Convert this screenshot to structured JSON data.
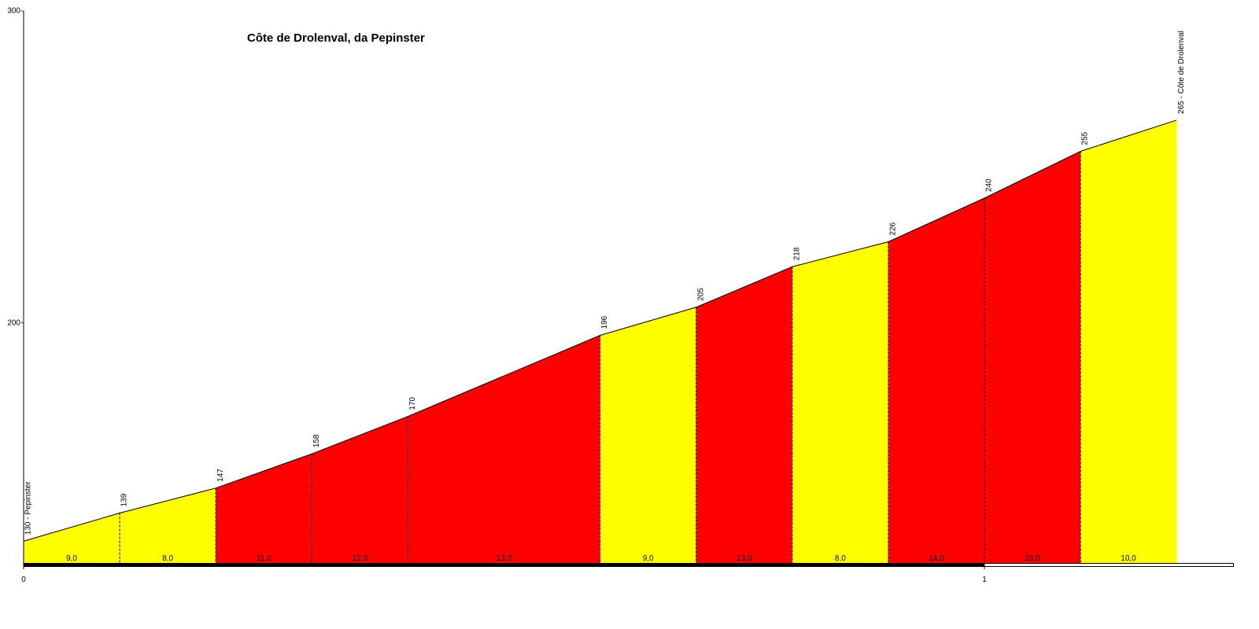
{
  "chart_data": {
    "type": "area",
    "title": "Côte de Drolenval, da Pepinster",
    "x": [
      0,
      0.1,
      0.2,
      0.3,
      0.4,
      0.6,
      0.7,
      0.8,
      0.9,
      1.0,
      1.1,
      1.2
    ],
    "y": [
      130,
      139,
      147,
      158,
      170,
      196,
      205,
      218,
      226,
      240,
      255,
      265
    ],
    "value_labels": [
      "130 - Pepinster",
      "139",
      "147",
      "158",
      "170",
      "196",
      "205",
      "218",
      "226",
      "240",
      "255",
      "265 - Côte de Drolenval"
    ],
    "gradient_labels": [
      "9,0",
      "8,0",
      "11,0",
      "12,0",
      "13,0",
      "9,0",
      "13,0",
      "8,0",
      "14,0",
      "15,0",
      "10,0"
    ],
    "segment_colors": [
      "#ffff00",
      "#ffff00",
      "#ff0000",
      "#ff0000",
      "#ff0000",
      "#ffff00",
      "#ff0000",
      "#ffff00",
      "#ff0000",
      "#ff0000",
      "#ffff00"
    ],
    "xlim": [
      0,
      1.26
    ],
    "xticks": [
      0,
      1
    ],
    "ylim": [
      123,
      300
    ],
    "yticks": [
      200,
      300
    ]
  }
}
